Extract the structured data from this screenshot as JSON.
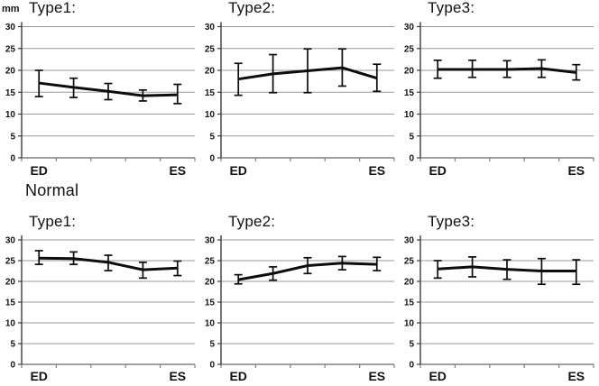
{
  "figure": {
    "unit_label": "mm",
    "section_label": "Normal"
  },
  "axis": {
    "ymin": 0,
    "ymax": 30,
    "ystep": 5
  },
  "chart_data": [
    {
      "type": "line",
      "title": "Type1:",
      "group": "",
      "categories": [
        "ED",
        "",
        "",
        "",
        "ES"
      ],
      "values": [
        17.1,
        16.1,
        15.2,
        14.2,
        14.4
      ],
      "err_low": [
        14.0,
        13.8,
        13.3,
        13.0,
        12.4
      ],
      "err_high": [
        20.0,
        18.2,
        17.0,
        15.5,
        16.8
      ],
      "ylim": [
        0,
        30
      ],
      "ylabel": "mm",
      "grid": true,
      "legend": "none"
    },
    {
      "type": "line",
      "title": "Type2:",
      "group": "",
      "categories": [
        "ED",
        "",
        "",
        "",
        "ES"
      ],
      "values": [
        18.0,
        19.2,
        19.9,
        20.6,
        18.2
      ],
      "err_low": [
        14.3,
        14.9,
        14.9,
        16.4,
        15.2
      ],
      "err_high": [
        21.6,
        23.6,
        24.9,
        24.9,
        21.4
      ],
      "ylim": [
        0,
        30
      ],
      "grid": true,
      "legend": "none"
    },
    {
      "type": "line",
      "title": "Type3:",
      "group": "",
      "categories": [
        "ED",
        "",
        "",
        "",
        "ES"
      ],
      "values": [
        20.2,
        20.2,
        20.2,
        20.4,
        19.5
      ],
      "err_low": [
        18.2,
        18.4,
        18.4,
        18.4,
        17.8
      ],
      "err_high": [
        22.3,
        22.3,
        22.2,
        22.4,
        21.3
      ],
      "ylim": [
        0,
        30
      ],
      "grid": true,
      "legend": "none"
    },
    {
      "type": "line",
      "title": "Type1:",
      "group": "Normal",
      "categories": [
        "ED",
        "",
        "",
        "",
        "ES"
      ],
      "values": [
        25.6,
        25.5,
        24.6,
        22.8,
        23.2
      ],
      "err_low": [
        24.1,
        24.1,
        22.6,
        20.8,
        21.4
      ],
      "err_high": [
        27.4,
        27.1,
        26.3,
        24.6,
        24.9
      ],
      "ylim": [
        0,
        30
      ],
      "grid": true,
      "legend": "none"
    },
    {
      "type": "line",
      "title": "Type2:",
      "group": "Normal",
      "categories": [
        "ED",
        "",
        "",
        "",
        "ES"
      ],
      "values": [
        20.4,
        21.9,
        23.8,
        24.4,
        24.1
      ],
      "err_low": [
        19.4,
        20.3,
        21.9,
        22.8,
        22.6
      ],
      "err_high": [
        21.6,
        23.5,
        25.7,
        26.0,
        25.8
      ],
      "ylim": [
        0,
        30
      ],
      "grid": true,
      "legend": "none"
    },
    {
      "type": "line",
      "title": "Type3:",
      "group": "Normal",
      "categories": [
        "ED",
        "",
        "",
        "",
        "ES"
      ],
      "values": [
        23.0,
        23.5,
        22.9,
        22.5,
        22.5
      ],
      "err_low": [
        20.8,
        21.1,
        20.5,
        19.3,
        19.3
      ],
      "err_high": [
        25.0,
        25.9,
        25.2,
        25.5,
        25.2
      ],
      "ylim": [
        0,
        30
      ],
      "grid": true,
      "legend": "none"
    }
  ],
  "colors": {
    "series_line": "#0d0d0d",
    "error_bar": "#0d0d0d",
    "gridline": "#999999",
    "y_axis": "#3d3d3d",
    "x_axis": "#808080",
    "text": "#111111"
  }
}
